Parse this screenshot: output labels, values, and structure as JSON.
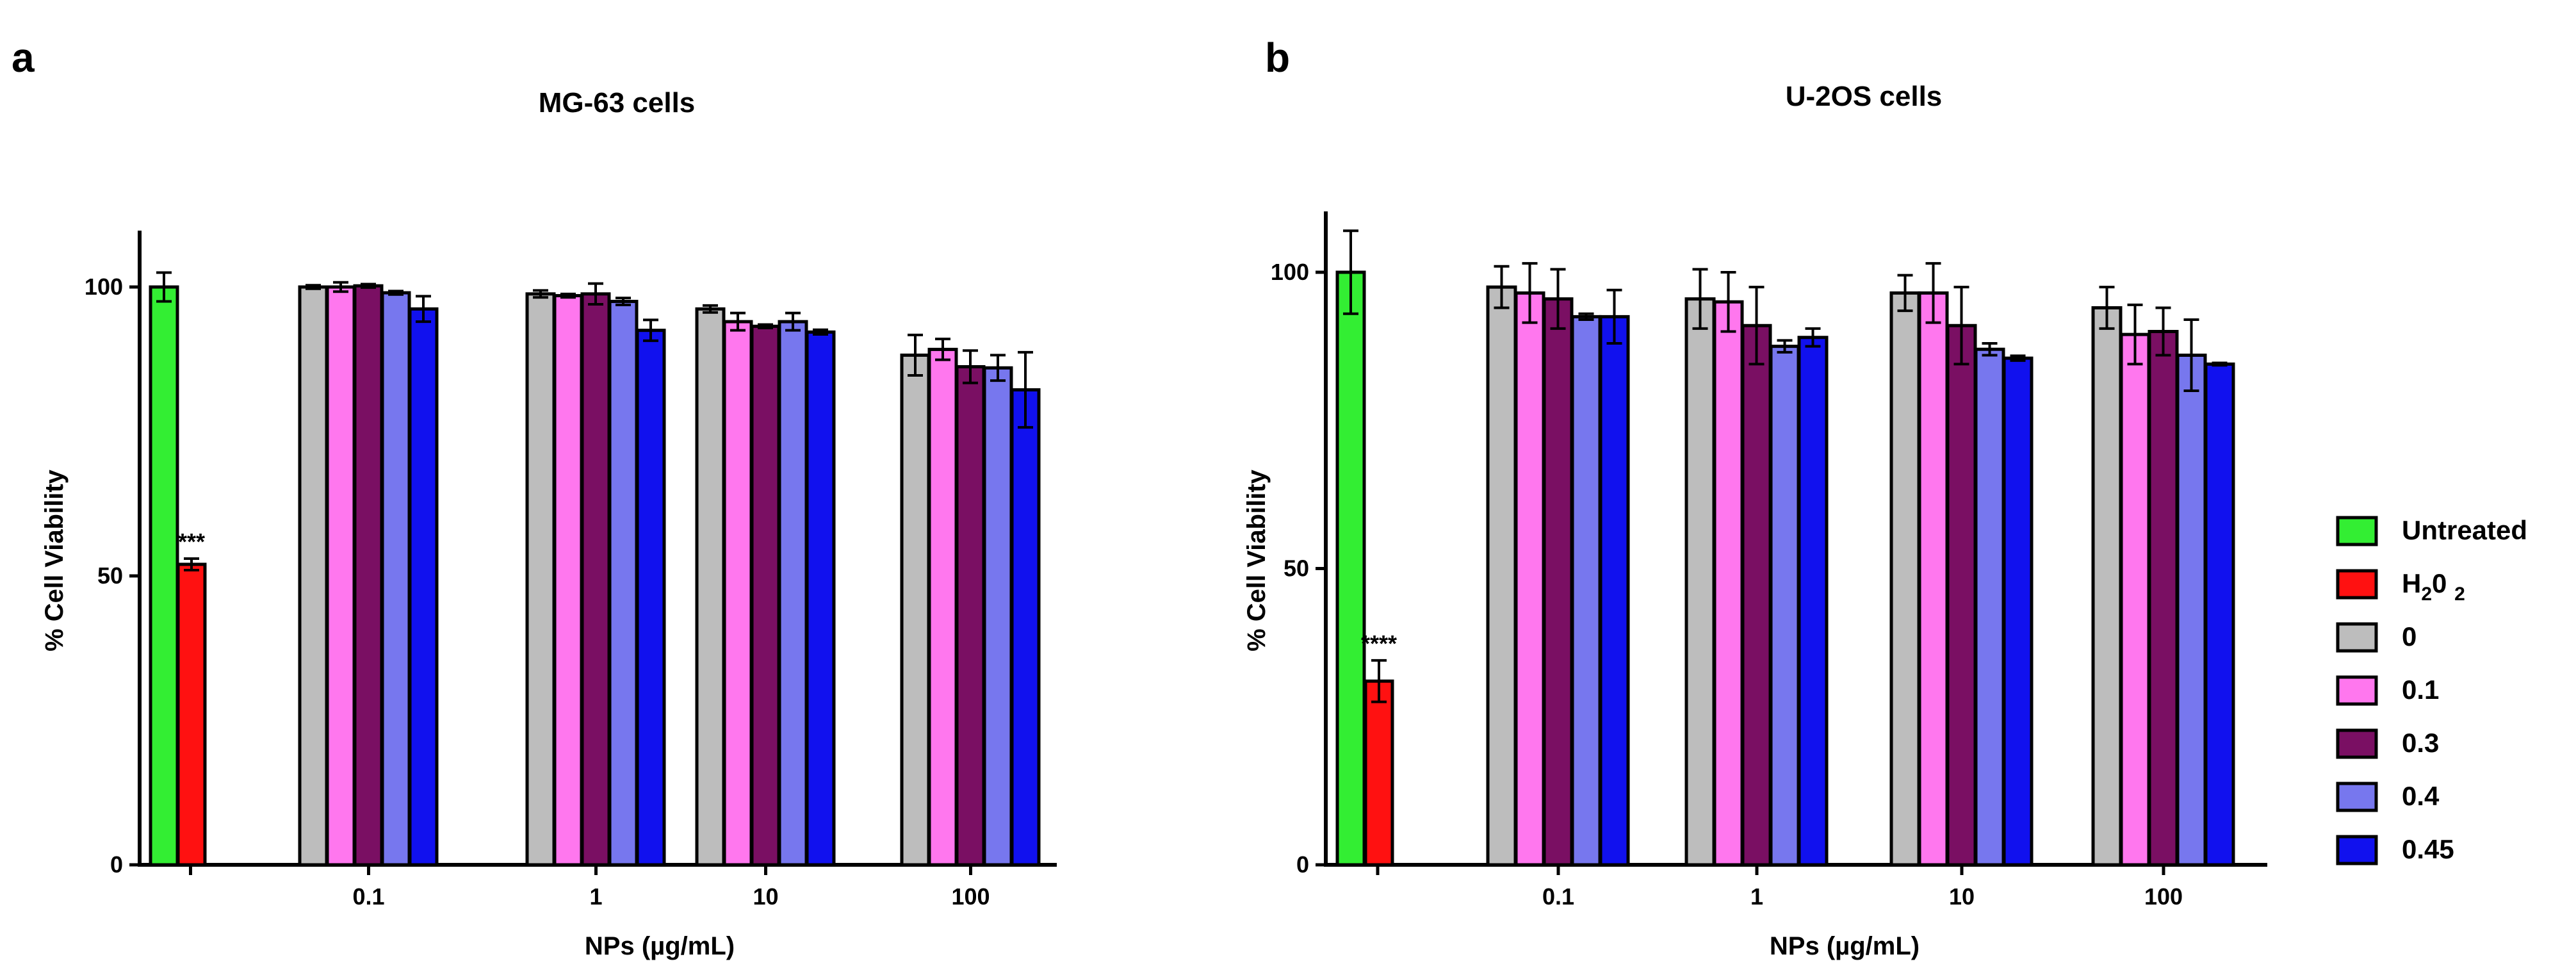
{
  "legend": {
    "items": [
      {
        "label": "Untreated",
        "color": "#33ee33"
      },
      {
        "label": "H20 2",
        "color": "#ff1111",
        "formula": {
          "main": "H",
          "sub": "2",
          "rest": "0 ",
          "sub2": "2"
        }
      },
      {
        "label": "0",
        "color": "#bdbdbd"
      },
      {
        "label": "0.1",
        "color": "#ff77ee"
      },
      {
        "label": "0.3",
        "color": "#7a0f63"
      },
      {
        "label": "0.4",
        "color": "#7777ee"
      },
      {
        "label": "0.45",
        "color": "#1111ee"
      }
    ]
  },
  "chart_data": [
    {
      "panel": "a",
      "type": "bar",
      "title": "MG-63 cells",
      "xlabel": "NPs  (µg/mL)",
      "ylabel": "% Cell Viability",
      "ylim": [
        0,
        110
      ],
      "yticks": [
        0,
        50,
        100
      ],
      "controls": [
        {
          "name": "Untreated",
          "value": 100,
          "error": 2.5
        },
        {
          "name": "H2O2",
          "value": 52,
          "error": 1.0,
          "significance": "***"
        }
      ],
      "categories": [
        "0.1",
        "1",
        "10",
        "100"
      ],
      "series": [
        {
          "name": "0",
          "values": [
            100,
            98.8,
            96.2,
            88.2
          ],
          "errors": [
            0.3,
            0.6,
            0.6,
            3.5
          ]
        },
        {
          "name": "0.1",
          "values": [
            100,
            98.5,
            94,
            89.2
          ],
          "errors": [
            0.8,
            0.3,
            1.5,
            1.8
          ]
        },
        {
          "name": "0.3",
          "values": [
            100.2,
            98.8,
            93.2,
            86.2
          ],
          "errors": [
            0.3,
            1.8,
            0.3,
            2.8
          ]
        },
        {
          "name": "0.4",
          "values": [
            99,
            97.5,
            94,
            86
          ],
          "errors": [
            0.3,
            0.6,
            1.5,
            2.2
          ]
        },
        {
          "name": "0.45",
          "values": [
            96.2,
            92.5,
            92.2,
            82.2
          ],
          "errors": [
            2.2,
            1.8,
            0.4,
            6.5
          ]
        }
      ]
    },
    {
      "panel": "b",
      "type": "bar",
      "title": "U-2OS cells",
      "xlabel": "NPs  (µg/mL)",
      "ylabel": "% Cell Viability",
      "ylim": [
        0,
        110
      ],
      "yticks": [
        0,
        50,
        100
      ],
      "controls": [
        {
          "name": "Untreated",
          "value": 100,
          "error": 7
        },
        {
          "name": "H2O2",
          "value": 31,
          "error": 3.5,
          "significance": "****"
        }
      ],
      "categories": [
        "0.1",
        "1",
        "10",
        "100"
      ],
      "series": [
        {
          "name": "0",
          "values": [
            97.5,
            95.5,
            96.5,
            94
          ],
          "errors": [
            3.5,
            5,
            3,
            3.5
          ]
        },
        {
          "name": "0.1",
          "values": [
            96.5,
            95,
            96.5,
            89.5
          ],
          "errors": [
            5,
            5,
            5,
            5
          ]
        },
        {
          "name": "0.3",
          "values": [
            95.5,
            91,
            91,
            90
          ],
          "errors": [
            5,
            6.5,
            6.5,
            4
          ]
        },
        {
          "name": "0.4",
          "values": [
            92.5,
            87.5,
            87,
            86
          ],
          "errors": [
            0.5,
            1,
            1,
            6
          ]
        },
        {
          "name": "0.45",
          "values": [
            92.5,
            89,
            85.5,
            84.5
          ],
          "errors": [
            4.5,
            1.5,
            0.4,
            0.2
          ]
        }
      ]
    }
  ]
}
